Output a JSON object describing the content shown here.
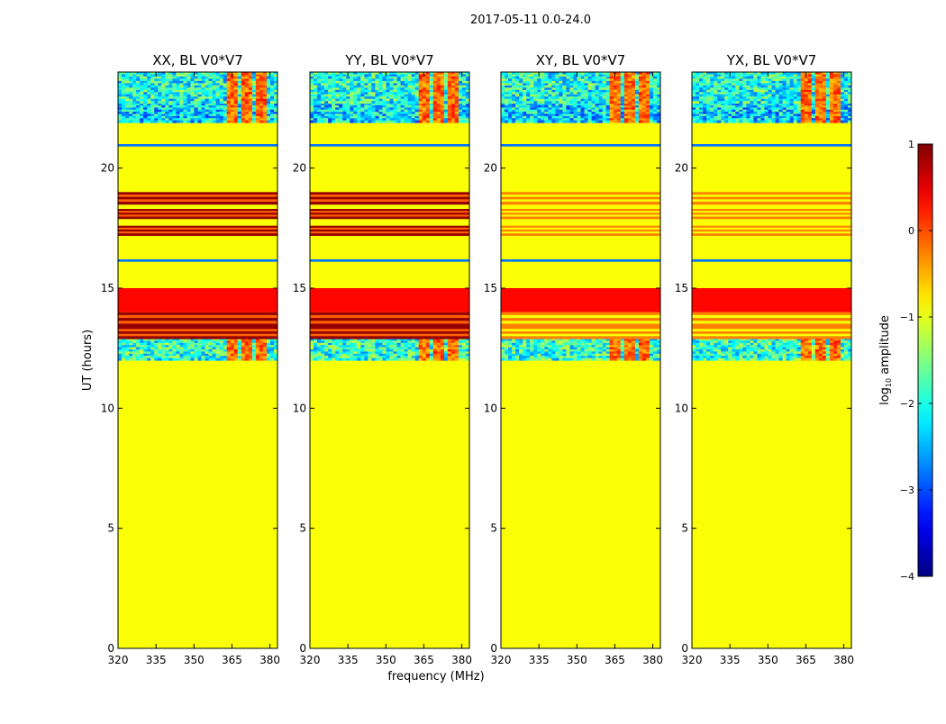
{
  "chart_data": {
    "type": "heatmap",
    "suptitle": "2017-05-11 0.0-24.0",
    "xlabel": "frequency (MHz)",
    "ylabel": "UT (hours)",
    "xlim": [
      320,
      383
    ],
    "ylim": [
      0,
      24
    ],
    "xticks": [
      320,
      335,
      350,
      365,
      380
    ],
    "yticks": [
      0,
      5,
      10,
      15,
      20
    ],
    "panels": [
      {
        "title": "XX, BL V0*V7",
        "pol": "XX",
        "cross": false
      },
      {
        "title": "YY, BL V0*V7",
        "pol": "YY",
        "cross": false
      },
      {
        "title": "XY, BL V0*V7",
        "pol": "XY",
        "cross": true
      },
      {
        "title": "YX, BL V0*V7",
        "pol": "YX",
        "cross": true
      }
    ],
    "colorbar": {
      "label_base": "log",
      "label_sub": "10",
      "label_rest": " amplitude",
      "vmin": -4,
      "vmax": 1,
      "ticks": [
        1,
        0,
        -1,
        -2,
        -3,
        -4
      ],
      "tick_labels": [
        "1",
        "0",
        "−1",
        "−2",
        "−3",
        "−4"
      ],
      "colormap": "jet"
    },
    "background_value": -0.9,
    "time_segments": [
      {
        "t0": 0.0,
        "t1": 12.0,
        "kind": "flat",
        "value": -0.9
      },
      {
        "t0": 12.0,
        "t1": 12.9,
        "kind": "noise_band",
        "value": -1.9
      },
      {
        "t0": 12.9,
        "t1": 13.4,
        "kind": "dark_bands"
      },
      {
        "t0": 13.4,
        "t1": 14.0,
        "kind": "dark_bands"
      },
      {
        "t0": 14.0,
        "t1": 15.0,
        "kind": "flat",
        "value": 0.35
      },
      {
        "t0": 15.0,
        "t1": 16.1,
        "kind": "flat",
        "value": -0.9
      },
      {
        "t0": 16.1,
        "t1": 16.2,
        "kind": "thin_line",
        "value": -2.8
      },
      {
        "t0": 17.2,
        "t1": 17.6,
        "kind": "dark_bands"
      },
      {
        "t0": 17.9,
        "t1": 18.3,
        "kind": "dark_bands"
      },
      {
        "t0": 18.5,
        "t1": 19.0,
        "kind": "dark_bands"
      },
      {
        "t0": 20.9,
        "t1": 21.0,
        "kind": "thin_line",
        "value": -2.8
      },
      {
        "t0": 21.9,
        "t1": 22.7,
        "kind": "noise_band",
        "value": -2.3
      },
      {
        "t0": 22.7,
        "t1": 24.0,
        "kind": "noise_band",
        "value": -2.0
      }
    ]
  }
}
